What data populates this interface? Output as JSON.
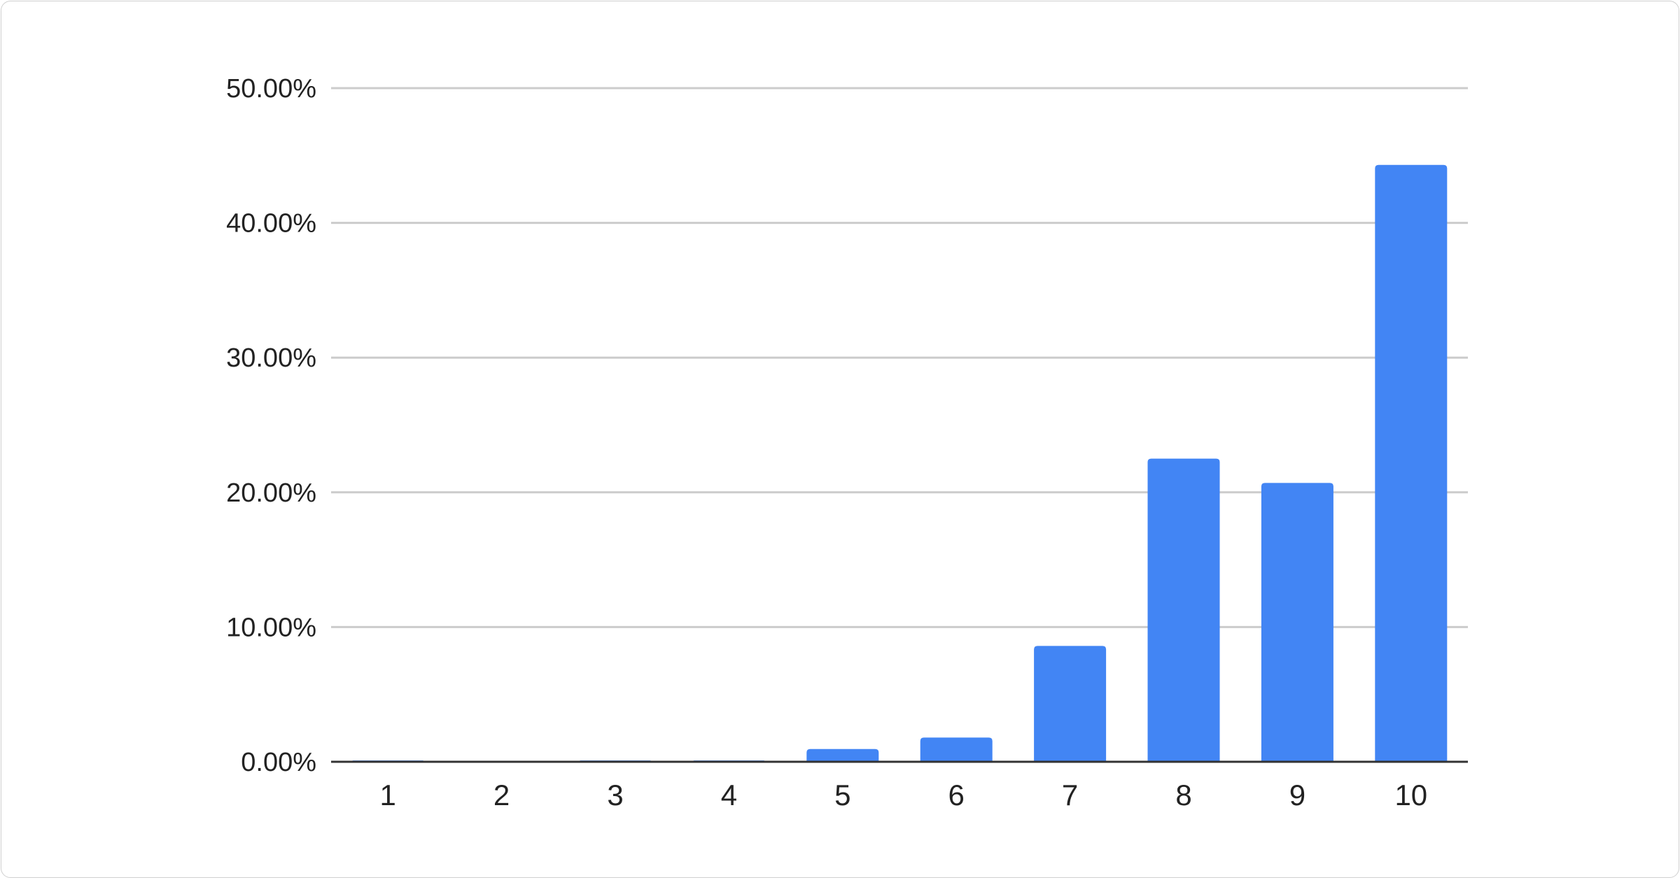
{
  "chart_data": {
    "type": "bar",
    "title": "",
    "xlabel": "",
    "ylabel": "",
    "categories": [
      "1",
      "2",
      "3",
      "4",
      "5",
      "6",
      "7",
      "8",
      "9",
      "10"
    ],
    "values": [
      0.1,
      0,
      0.1,
      0.1,
      0.95,
      1.8,
      8.6,
      22.5,
      20.7,
      44.3
    ],
    "value_unit": "%",
    "ylim": [
      0,
      50
    ],
    "yticks": [
      "0.00%",
      "10.00%",
      "20.00%",
      "30.00%",
      "40.00%",
      "50.00%"
    ],
    "grid": true,
    "legend": "none",
    "bar_color": "#4285f4",
    "grid_color": "#cccccc",
    "axis_color": "#333333"
  }
}
